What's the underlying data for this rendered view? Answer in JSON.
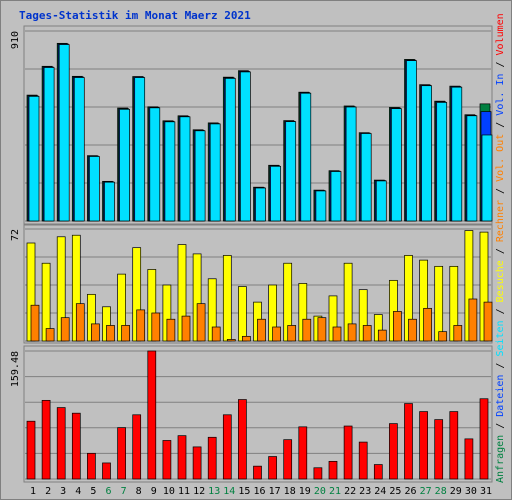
{
  "title": "Tages-Statistik im Monat Maerz 2021",
  "colors": {
    "background": "#c0c0c0",
    "anfragen": "#008040",
    "dateien": "#0040ff",
    "seiten": "#00e0ff",
    "besuche": "#ffff00",
    "rechner": "#ff8000",
    "volumen": "#ff0000",
    "weekend_label": "#008040",
    "weekday_label": "#000000"
  },
  "right_legend": {
    "top": [
      {
        "text": "Anfragen",
        "color": "#008040"
      },
      {
        "text": " / ",
        "color": "#000000"
      },
      {
        "text": "Dateien",
        "color": "#0040ff"
      },
      {
        "text": " / ",
        "color": "#000000"
      },
      {
        "text": "Seiten",
        "color": "#00e0ff"
      },
      {
        "text": " / ",
        "color": "#000000"
      },
      {
        "text": "Besuche",
        "color": "#ffff00"
      },
      {
        "text": " / ",
        "color": "#000000"
      },
      {
        "text": "Rechner",
        "color": "#ff8000"
      },
      {
        "text": " / ",
        "color": "#000000"
      },
      {
        "text": "Vol. Out",
        "color": "#ff8000"
      },
      {
        "text": " / ",
        "color": "#000000"
      },
      {
        "text": "Vol. In",
        "color": "#0040ff"
      },
      {
        "text": " / ",
        "color": "#000000"
      },
      {
        "text": "Volumen",
        "color": "#ff0000"
      }
    ]
  },
  "chart_data": [
    {
      "type": "bar",
      "panel": "top",
      "ymax_label": "910",
      "ylim": [
        0,
        910
      ],
      "categories": [
        "1",
        "2",
        "3",
        "4",
        "5",
        "6",
        "7",
        "8",
        "9",
        "10",
        "11",
        "12",
        "13",
        "14",
        "15",
        "16",
        "17",
        "18",
        "19",
        "20",
        "21",
        "22",
        "23",
        "24",
        "25",
        "26",
        "27",
        "28",
        "29",
        "30",
        "31"
      ],
      "weekend_days": [
        6,
        7,
        13,
        14,
        20,
        21,
        27,
        28
      ],
      "series": [
        {
          "name": "Anfragen",
          "values": [
            603,
            741,
            851,
            693,
            313,
            190,
            541,
            692,
            547,
            480,
            504,
            437,
            470,
            689,
            720,
            162,
            267,
            481,
            617,
            148,
            241,
            551,
            423,
            196,
            544,
            774,
            653,
            574,
            646,
            509,
            561
          ]
        },
        {
          "name": "Dateien",
          "values": [
            600,
            738,
            848,
            690,
            311,
            188,
            538,
            690,
            545,
            478,
            501,
            434,
            467,
            686,
            717,
            160,
            265,
            478,
            615,
            146,
            239,
            548,
            421,
            194,
            541,
            771,
            651,
            571,
            644,
            506,
            524
          ]
        },
        {
          "name": "Seiten",
          "values": [
            597,
            735,
            845,
            687,
            309,
            186,
            535,
            687,
            542,
            475,
            499,
            432,
            465,
            683,
            714,
            158,
            262,
            476,
            612,
            144,
            237,
            546,
            419,
            192,
            538,
            768,
            648,
            568,
            641,
            504,
            412
          ]
        }
      ]
    },
    {
      "type": "bar",
      "panel": "middle",
      "ymax_label": "72",
      "ylim": [
        0,
        72
      ],
      "categories": [
        "1",
        "2",
        "3",
        "4",
        "5",
        "6",
        "7",
        "8",
        "9",
        "10",
        "11",
        "12",
        "13",
        "14",
        "15",
        "16",
        "17",
        "18",
        "19",
        "20",
        "21",
        "22",
        "23",
        "24",
        "25",
        "26",
        "27",
        "28",
        "29",
        "30",
        "31"
      ],
      "series": [
        {
          "name": "Besuche",
          "values": [
            63,
            50,
            67,
            68,
            30,
            22,
            43,
            60,
            46,
            36,
            62,
            56,
            40,
            55,
            35,
            25,
            36,
            50,
            37,
            16,
            29,
            50,
            33,
            17,
            39,
            55,
            52,
            48,
            48,
            71,
            70
          ]
        },
        {
          "name": "Rechner",
          "values": [
            23,
            8,
            15,
            24,
            11,
            10,
            10,
            20,
            18,
            14,
            16,
            24,
            9,
            1,
            3,
            14,
            9,
            10,
            14,
            15,
            9,
            11,
            10,
            7,
            19,
            14,
            21,
            6,
            10,
            27,
            25
          ]
        }
      ]
    },
    {
      "type": "bar",
      "panel": "bottom",
      "ymax_label": "159.48",
      "ylim": [
        0,
        159.48
      ],
      "categories": [
        "1",
        "2",
        "3",
        "4",
        "5",
        "6",
        "7",
        "8",
        "9",
        "10",
        "11",
        "12",
        "13",
        "14",
        "15",
        "16",
        "17",
        "18",
        "19",
        "20",
        "21",
        "22",
        "23",
        "24",
        "25",
        "26",
        "27",
        "28",
        "29",
        "30",
        "31"
      ],
      "series": [
        {
          "name": "Volumen",
          "values": [
            72,
            98,
            89,
            82,
            32,
            20,
            64,
            80,
            159.48,
            48,
            54,
            40,
            52,
            80,
            99,
            16,
            28,
            49,
            65,
            14,
            22,
            66,
            46,
            18,
            69,
            94,
            84,
            74,
            84,
            50,
            100
          ]
        }
      ]
    }
  ]
}
